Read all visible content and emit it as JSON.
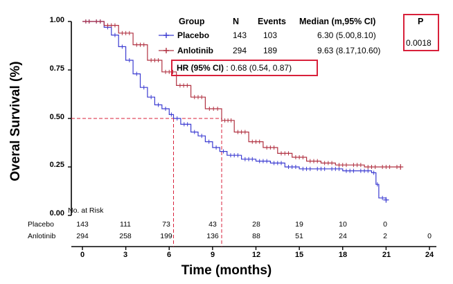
{
  "chart_data": {
    "type": "line",
    "title": "",
    "xlabel": "Time (months)",
    "ylabel": "Overal Survival (%)",
    "xlim": [
      0,
      24
    ],
    "ylim": [
      0,
      1
    ],
    "x_ticks": [
      "0",
      "3",
      "6",
      "9",
      "12",
      "15",
      "18",
      "21",
      "24"
    ],
    "y_ticks": [
      "0.00",
      "0.25",
      "0.50",
      "0.75",
      "1.00"
    ],
    "grid": false,
    "series": [
      {
        "name": "Placebo",
        "color": "#3b3bd1",
        "marker": "+",
        "x": [
          0,
          0.7,
          1.5,
          2.0,
          2.5,
          3.0,
          3.5,
          4.0,
          4.5,
          5.0,
          5.5,
          6.0,
          6.3,
          6.8,
          7.5,
          8.0,
          8.5,
          9.0,
          9.5,
          10.0,
          11.0,
          12.0,
          13.0,
          14.0,
          15.0,
          16.0,
          17.0,
          18.0,
          19.0,
          20.0,
          20.3,
          20.5,
          21.0
        ],
        "y": [
          1.0,
          1.0,
          0.97,
          0.93,
          0.87,
          0.8,
          0.73,
          0.66,
          0.61,
          0.57,
          0.55,
          0.52,
          0.5,
          0.47,
          0.43,
          0.41,
          0.38,
          0.35,
          0.33,
          0.31,
          0.29,
          0.28,
          0.27,
          0.25,
          0.24,
          0.24,
          0.24,
          0.23,
          0.23,
          0.22,
          0.16,
          0.09,
          0.08
        ]
      },
      {
        "name": "Anlotinib",
        "color": "#b03040",
        "marker": "+",
        "x": [
          0,
          0.7,
          1.5,
          2.5,
          3.5,
          4.5,
          5.5,
          6.5,
          7.5,
          8.5,
          9.63,
          10.5,
          11.5,
          12.5,
          13.5,
          14.5,
          15.5,
          16.5,
          17.5,
          18.5,
          19.5,
          20.5,
          21.5,
          22.0
        ],
        "y": [
          1.0,
          1.0,
          0.98,
          0.94,
          0.88,
          0.8,
          0.74,
          0.67,
          0.61,
          0.55,
          0.49,
          0.43,
          0.38,
          0.35,
          0.32,
          0.3,
          0.28,
          0.27,
          0.26,
          0.26,
          0.25,
          0.25,
          0.25,
          0.25
        ]
      }
    ],
    "reference_lines": {
      "y": 0.5,
      "x_medians": [
        6.3,
        9.63
      ]
    },
    "annotations": {
      "legend_headers": [
        "Group",
        "N",
        "Events",
        "Median (m,95% CI)",
        "P"
      ],
      "rows": [
        {
          "symbol": "-+-",
          "group": "Placebo",
          "n": "143",
          "events": "103",
          "median": "6.30 (5.00,8.10)"
        },
        {
          "symbol": "-+-",
          "group": "Anlotinib",
          "n": "294",
          "events": "189",
          "median": "9.63 (8.17,10.60)"
        }
      ],
      "p_value": "0.0018",
      "hr_label": "HR (95% CI)",
      "hr_value": ": 0.68 (0.54, 0.87)"
    },
    "risk_table": {
      "title": "No. at Risk",
      "times": [
        0,
        3,
        6,
        9,
        12,
        15,
        18,
        21,
        24
      ],
      "rows": [
        {
          "label": "Placebo",
          "values": [
            "143",
            "111",
            "73",
            "43",
            "28",
            "19",
            "10",
            "0",
            ""
          ]
        },
        {
          "label": "Anlotinib",
          "values": [
            "294",
            "258",
            "199",
            "136",
            "88",
            "51",
            "24",
            "2",
            "0"
          ]
        }
      ]
    }
  }
}
